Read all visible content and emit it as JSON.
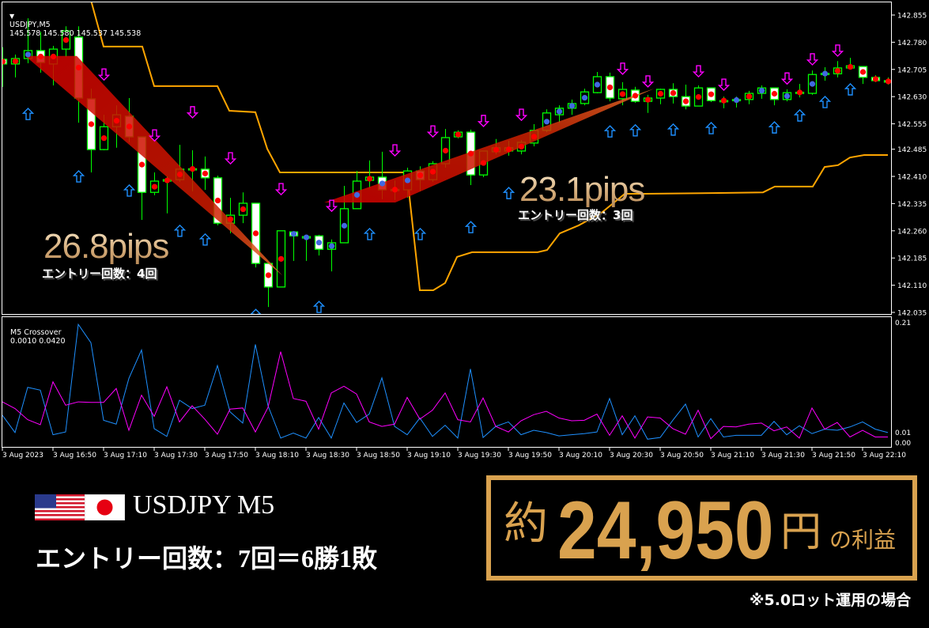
{
  "header": {
    "symbol": "USDJPY,M5",
    "ohlc": "145.578 145.580 145.537 145.538"
  },
  "indicator": {
    "name": "M5 Crossover",
    "values": "0.0010 0.0420"
  },
  "trade_labels": [
    {
      "pips": "26.8pips",
      "entries": "エントリー回数：4回"
    },
    {
      "pips": "23.1pips",
      "entries": "エントリー回数：3回"
    }
  ],
  "summary": {
    "pair": "USDJPY M5",
    "record": "エントリー回数：7回＝6勝1敗",
    "profit_prefix": "約",
    "profit_amount": "24,950",
    "profit_unit": "円",
    "profit_suffix": "の利益",
    "note": "※5.0ロット運用の場合"
  },
  "colors": {
    "bull_border": "#00ff00",
    "bear_fill": "#ffffff",
    "trail": "#ffa500",
    "buy_arrow": "#1e90ff",
    "sell_arrow": "#ff00ff",
    "dot_red": "#ff0000",
    "dot_blue": "#4169e1",
    "osc_blue": "#1e90ff",
    "osc_magenta": "#ff00ff",
    "gold": "#d9a24f"
  },
  "chart_data": [
    {
      "type": "candlestick",
      "ylim": [
        142.035,
        142.855
      ],
      "y_ticks": [
        "142.855",
        "142.780",
        "142.705",
        "142.630",
        "142.555",
        "142.485",
        "142.410",
        "142.335",
        "142.260",
        "142.185",
        "142.110",
        "142.035"
      ],
      "x_ticks": [
        "3 Aug 2023",
        "3 Aug 16:50",
        "3 Aug 17:10",
        "3 Aug 17:30",
        "3 Aug 17:50",
        "3 Aug 18:10",
        "3 Aug 18:30",
        "3 Aug 18:50",
        "3 Aug 19:10",
        "3 Aug 19:30",
        "3 Aug 19:50",
        "3 Aug 20:10",
        "3 Aug 20:30",
        "3 Aug 20:50",
        "3 Aug 21:10",
        "3 Aug 21:30",
        "3 Aug 21:50",
        "3 Aug 22:10"
      ],
      "x_tick_every_bars": 4,
      "ohlc": [
        [
          142.733,
          142.766,
          142.657,
          142.72
        ],
        [
          142.72,
          142.746,
          142.683,
          142.735
        ],
        [
          142.735,
          142.846,
          142.722,
          142.757
        ],
        [
          142.757,
          142.809,
          142.696,
          142.724
        ],
        [
          142.72,
          142.77,
          142.661,
          142.761
        ],
        [
          142.761,
          142.824,
          142.739,
          142.811
        ],
        [
          142.794,
          142.824,
          142.558,
          142.626
        ],
        [
          142.624,
          142.652,
          142.421,
          142.484
        ],
        [
          142.484,
          142.58,
          142.482,
          142.547
        ],
        [
          142.547,
          142.606,
          142.489,
          142.58
        ],
        [
          142.576,
          142.626,
          142.504,
          142.519
        ],
        [
          142.519,
          142.519,
          142.29,
          142.366
        ],
        [
          142.366,
          142.421,
          142.358,
          142.397
        ],
        [
          142.397,
          142.41,
          142.308,
          142.401
        ],
        [
          142.401,
          142.497,
          142.395,
          142.43
        ],
        [
          142.43,
          142.482,
          142.369,
          142.431
        ],
        [
          142.43,
          142.465,
          142.373,
          142.406
        ],
        [
          142.406,
          142.412,
          142.275,
          142.281
        ],
        [
          142.281,
          142.351,
          142.253,
          142.303
        ],
        [
          142.303,
          142.366,
          142.281,
          142.336
        ],
        [
          142.336,
          142.336,
          142.159,
          142.17
        ],
        [
          142.17,
          142.17,
          142.05,
          142.105
        ],
        [
          142.105,
          142.26,
          142.105,
          142.26
        ],
        [
          142.257,
          142.257,
          142.177,
          142.246
        ],
        [
          142.24,
          142.246,
          142.177,
          142.244
        ],
        [
          142.246,
          142.249,
          142.192,
          142.209
        ],
        [
          142.209,
          142.236,
          142.148,
          142.227
        ],
        [
          142.227,
          142.384,
          142.227,
          142.321
        ],
        [
          142.321,
          142.425,
          142.321,
          142.397
        ],
        [
          142.399,
          142.454,
          142.377,
          142.408
        ],
        [
          142.408,
          142.478,
          142.347,
          142.373
        ],
        [
          142.373,
          142.399,
          142.345,
          142.374
        ],
        [
          142.373,
          142.434,
          142.351,
          142.425
        ],
        [
          142.425,
          142.438,
          142.369,
          142.401
        ],
        [
          142.401,
          142.452,
          142.395,
          142.445
        ],
        [
          142.445,
          142.541,
          142.434,
          142.517
        ],
        [
          142.519,
          142.537,
          142.515,
          142.532
        ],
        [
          142.532,
          142.539,
          142.386,
          142.414
        ],
        [
          142.414,
          142.48,
          142.408,
          142.48
        ],
        [
          142.478,
          142.513,
          142.471,
          142.489
        ],
        [
          142.48,
          142.508,
          142.467,
          142.489
        ],
        [
          142.48,
          142.51,
          142.471,
          142.504
        ],
        [
          142.502,
          142.554,
          142.493,
          142.537
        ],
        [
          142.537,
          142.595,
          142.532,
          142.585
        ],
        [
          142.58,
          142.606,
          142.558,
          142.598
        ],
        [
          142.598,
          142.622,
          142.58,
          142.611
        ],
        [
          142.611,
          142.652,
          142.606,
          142.643
        ],
        [
          142.641,
          142.698,
          142.639,
          142.685
        ],
        [
          142.685,
          142.696,
          142.617,
          142.626
        ],
        [
          142.624,
          142.67,
          142.606,
          142.65
        ],
        [
          142.648,
          142.657,
          142.613,
          142.617
        ],
        [
          142.617,
          142.635,
          142.585,
          142.626
        ],
        [
          142.626,
          142.652,
          142.609,
          142.65
        ],
        [
          142.65,
          142.667,
          142.611,
          142.63
        ],
        [
          142.63,
          142.663,
          142.595,
          142.604
        ],
        [
          142.604,
          142.661,
          142.604,
          142.654
        ],
        [
          142.654,
          142.654,
          142.615,
          142.619
        ],
        [
          142.619,
          142.63,
          142.598,
          142.619
        ],
        [
          142.619,
          142.63,
          142.6,
          142.622
        ],
        [
          142.622,
          142.646,
          142.609,
          142.639
        ],
        [
          142.639,
          142.661,
          142.624,
          142.654
        ],
        [
          142.654,
          142.654,
          142.606,
          142.622
        ],
        [
          142.622,
          142.65,
          142.617,
          142.641
        ],
        [
          142.641,
          142.665,
          142.628,
          142.642
        ],
        [
          142.639,
          142.702,
          142.635,
          142.691
        ],
        [
          142.693,
          142.711,
          142.674,
          142.694
        ],
        [
          142.693,
          142.728,
          142.683,
          142.709
        ],
        [
          142.709,
          142.737,
          142.707,
          142.715
        ],
        [
          142.713,
          142.713,
          142.665,
          142.683
        ],
        [
          142.683,
          142.689,
          142.67,
          142.674
        ],
        [
          142.674,
          142.683,
          142.663,
          142.67
        ]
      ],
      "blue_dot_bars": [
        2,
        23,
        24,
        25,
        26,
        27,
        28,
        30,
        32,
        43,
        44,
        45,
        46,
        47,
        58,
        60,
        62,
        64,
        65
      ],
      "buy_arrows": [
        [
          2,
          142.582
        ],
        [
          6,
          142.41
        ],
        [
          10,
          142.371
        ],
        [
          14,
          142.26
        ],
        [
          16,
          142.236
        ],
        [
          20,
          142.028
        ],
        [
          25,
          142.05
        ],
        [
          29,
          142.251
        ],
        [
          33,
          142.251
        ],
        [
          37,
          142.27
        ],
        [
          40,
          142.364
        ],
        [
          48,
          142.534
        ],
        [
          50,
          142.537
        ],
        [
          53,
          142.539
        ],
        [
          56,
          142.543
        ],
        [
          61,
          142.545
        ],
        [
          63,
          142.578
        ],
        [
          65,
          142.615
        ],
        [
          67,
          142.65
        ]
      ],
      "sell_arrows": [
        [
          8,
          142.691
        ],
        [
          12,
          142.523
        ],
        [
          15,
          142.587
        ],
        [
          18,
          142.46
        ],
        [
          22,
          142.375
        ],
        [
          26,
          142.329
        ],
        [
          31,
          142.482
        ],
        [
          34,
          142.534
        ],
        [
          38,
          142.563
        ],
        [
          41,
          142.58
        ],
        [
          49,
          142.707
        ],
        [
          51,
          142.672
        ],
        [
          55,
          142.7
        ],
        [
          57,
          142.663
        ],
        [
          62,
          142.68
        ],
        [
          64,
          142.733
        ],
        [
          66,
          142.757
        ]
      ],
      "trailing_line": [
        [
          7.0,
          142.896
        ],
        [
          8.0,
          142.768
        ],
        [
          11.06,
          142.768
        ],
        [
          12.0,
          142.659
        ],
        [
          17.0,
          142.659
        ],
        [
          17.94,
          142.591
        ],
        [
          20.0,
          142.587
        ],
        [
          20.94,
          142.486
        ],
        [
          21.94,
          142.421
        ],
        [
          32.0,
          142.421
        ],
        [
          32.19,
          142.351
        ],
        [
          33.0,
          142.096
        ],
        [
          34.06,
          142.096
        ],
        [
          35.0,
          142.116
        ],
        [
          35.94,
          142.188
        ],
        [
          37.13,
          142.201
        ],
        [
          42.31,
          142.201
        ],
        [
          43.06,
          142.207
        ],
        [
          44.06,
          142.253
        ],
        [
          45.56,
          142.275
        ],
        [
          47.3,
          142.308
        ],
        [
          49.2,
          142.362
        ],
        [
          50.75,
          142.362
        ],
        [
          56.06,
          142.364
        ],
        [
          60.13,
          142.366
        ],
        [
          61.06,
          142.382
        ],
        [
          64.06,
          142.382
        ],
        [
          65.0,
          142.436
        ],
        [
          66.06,
          142.441
        ],
        [
          67.0,
          142.462
        ],
        [
          68.13,
          142.469
        ],
        [
          70.0,
          142.469
        ]
      ],
      "trade_zones": [
        [
          [
            1.81,
            142.742
          ],
          [
            5.88,
            142.742
          ],
          [
            22.13,
            142.137
          ]
        ],
        [
          [
            25.44,
            142.338
          ],
          [
            31.06,
            142.338
          ],
          [
            51.5,
            142.652
          ]
        ]
      ]
    },
    {
      "type": "line",
      "title": "M5 Crossover",
      "ylim": [
        0,
        0.21
      ],
      "y_ticks": [
        "0.21",
        "0.01",
        "0.00"
      ],
      "series": [
        {
          "color": "#1e90ff",
          "values": [
            0.044,
            0.013,
            0.094,
            0.089,
            0.009,
            0.014,
            0.207,
            0.174,
            0.035,
            0.028,
            0.11,
            0.161,
            0.02,
            0.006,
            0.071,
            0.056,
            0.062,
            0.133,
            0.05,
            0.03,
            0.171,
            0.061,
            0.003,
            0.012,
            0.003,
            0.04,
            0.003,
            0.066,
            0.031,
            0.046,
            0.111,
            0.024,
            0.009,
            0.039,
            0.006,
            0.026,
            0.003,
            0.127,
            0.004,
            0.024,
            0.032,
            0.009,
            0.017,
            0.013,
            0.007,
            0.009,
            0.011,
            0.014,
            0.074,
            0.009,
            0.043,
            0.001,
            0.004,
            0.035,
            0.064,
            0.005,
            0.038,
            0.005,
            0.008,
            0.008,
            0.008,
            0.033,
            0.009,
            0.025,
            0.011,
            0.019,
            0.017,
            0.023,
            0.032,
            0.019,
            0.013
          ]
        },
        {
          "color": "#ff00ff",
          "values": [
            0.068,
            0.056,
            0.036,
            0.027,
            0.104,
            0.062,
            0.068,
            0.067,
            0.067,
            0.092,
            0.017,
            0.08,
            0.042,
            0.095,
            0.032,
            0.061,
            0.037,
            0.01,
            0.055,
            0.057,
            0.014,
            0.058,
            0.158,
            0.074,
            0.069,
            0.019,
            0.084,
            0.096,
            0.082,
            0.032,
            0.024,
            0.028,
            0.076,
            0.037,
            0.053,
            0.084,
            0.036,
            0.032,
            0.075,
            0.024,
            0.014,
            0.034,
            0.045,
            0.051,
            0.039,
            0.034,
            0.035,
            0.046,
            0.008,
            0.043,
            0.003,
            0.041,
            0.039,
            0.02,
            0.01,
            0.053,
            0.002,
            0.024,
            0.023,
            0.028,
            0.03,
            0.016,
            0.023,
            0.003,
            0.057,
            0.019,
            0.031,
            0.005,
            0.017,
            0.005,
            0.005
          ]
        }
      ]
    }
  ]
}
